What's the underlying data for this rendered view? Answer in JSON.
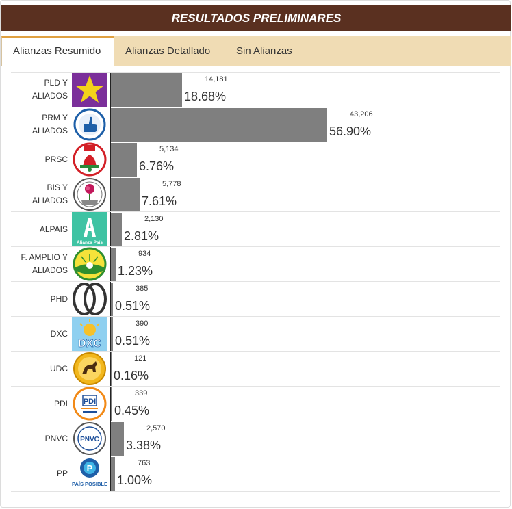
{
  "header": {
    "title": "RESULTADOS PRELIMINARES"
  },
  "tabs": [
    {
      "label": "Alianzas Resumido",
      "active": true
    },
    {
      "label": "Alianzas Detallado",
      "active": false
    },
    {
      "label": "Sin Alianzas",
      "active": false
    }
  ],
  "colors": {
    "header_bg": "#5a3020",
    "tabs_bg": "#f0dcb4",
    "bar": "#7f7f7f"
  },
  "chart_data": {
    "type": "bar",
    "orientation": "horizontal",
    "categories": [
      "PLD Y ALIADOS",
      "PRM Y ALIADOS",
      "PRSC",
      "BIS Y ALIADOS",
      "ALPAIS",
      "F. AMPLIO Y ALIADOS",
      "PHD",
      "DXC",
      "UDC",
      "PDI",
      "PNVC",
      "PP"
    ],
    "category_labels": [
      "PLD Y\nALIADOS",
      "PRM Y\nALIADOS",
      "PRSC",
      "BIS Y\nALIADOS",
      "ALPAIS",
      "F. AMPLIO Y\nALIADOS",
      "PHD",
      "DXC",
      "UDC",
      "PDI",
      "PNVC",
      "PP"
    ],
    "values": [
      18.68,
      56.9,
      6.76,
      7.61,
      2.81,
      1.23,
      0.51,
      0.51,
      0.16,
      0.45,
      3.38,
      1.0
    ],
    "value_labels": [
      "18.68%",
      "56.90%",
      "6.76%",
      "7.61%",
      "2.81%",
      "1.23%",
      "0.51%",
      "0.51%",
      "0.16%",
      "0.45%",
      "3.38%",
      "1.00%"
    ],
    "votes": [
      "14,181",
      "43,206",
      "5,134",
      "5,778",
      "2,130",
      "934",
      "385",
      "390",
      "121",
      "339",
      "2,570",
      "763"
    ],
    "logos": [
      "star-logo",
      "thumbs-up-logo",
      "bell-logo",
      "rose-logo",
      "letter-a-logo",
      "sun-logo",
      "double-ring-logo",
      "dxc-logo",
      "horse-logo",
      "pdi-logo",
      "pnvc-logo",
      "pais-posible-logo"
    ],
    "logo_texts": {
      "alpais": "Alianza País",
      "dxc": "DXC",
      "pdi": "PDI",
      "pnvc": "PNVC",
      "pp": "PAÍS POSIBLE"
    },
    "xlim": [
      0,
      100
    ]
  }
}
